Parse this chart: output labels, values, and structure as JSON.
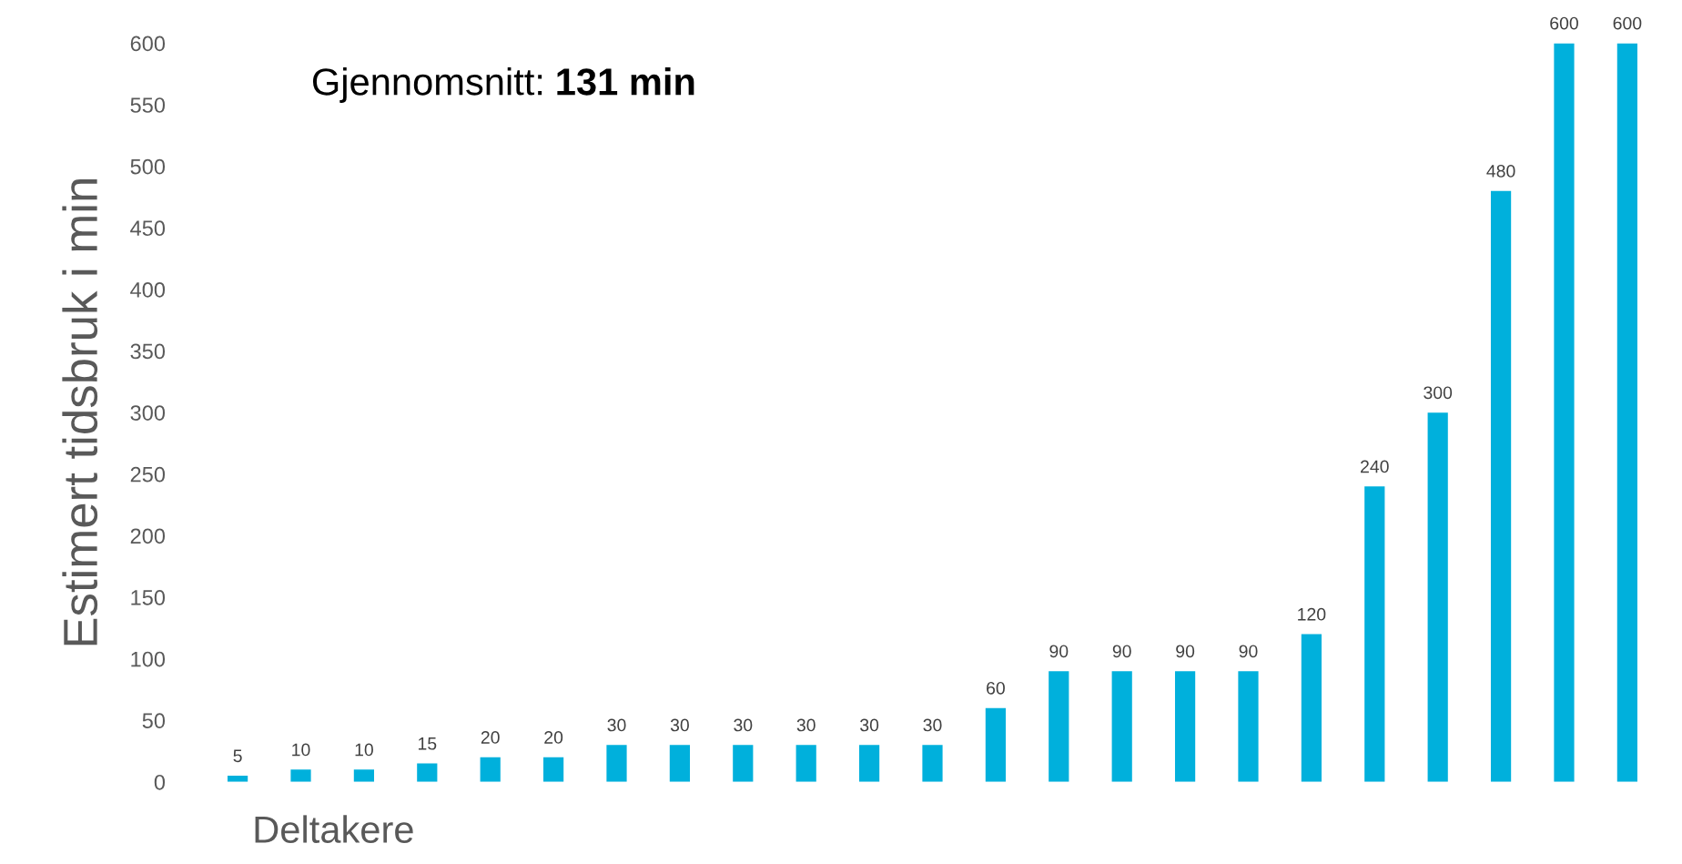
{
  "chart_data": {
    "type": "bar",
    "xlabel": "Deltakere",
    "ylabel": "Estimert tidsbruk i min",
    "annotations": [
      "Gjennomsnitt: 131 min"
    ],
    "categories": [
      null,
      null,
      null,
      null,
      null,
      null,
      null,
      null,
      null,
      null,
      null,
      null,
      null,
      null,
      null,
      null,
      null,
      null,
      null,
      null,
      null,
      null,
      null
    ],
    "values": [
      5,
      10,
      10,
      15,
      20,
      20,
      30,
      30,
      30,
      30,
      30,
      30,
      60,
      90,
      90,
      90,
      90,
      120,
      240,
      300,
      480,
      600,
      600
    ],
    "color": "#00b0dc",
    "data_labels": true,
    "ylim": [
      0,
      600
    ],
    "yticks": [
      0,
      50,
      100,
      150,
      200,
      250,
      300,
      350,
      400,
      450,
      500,
      550,
      600
    ],
    "grid": false,
    "legend": false
  }
}
